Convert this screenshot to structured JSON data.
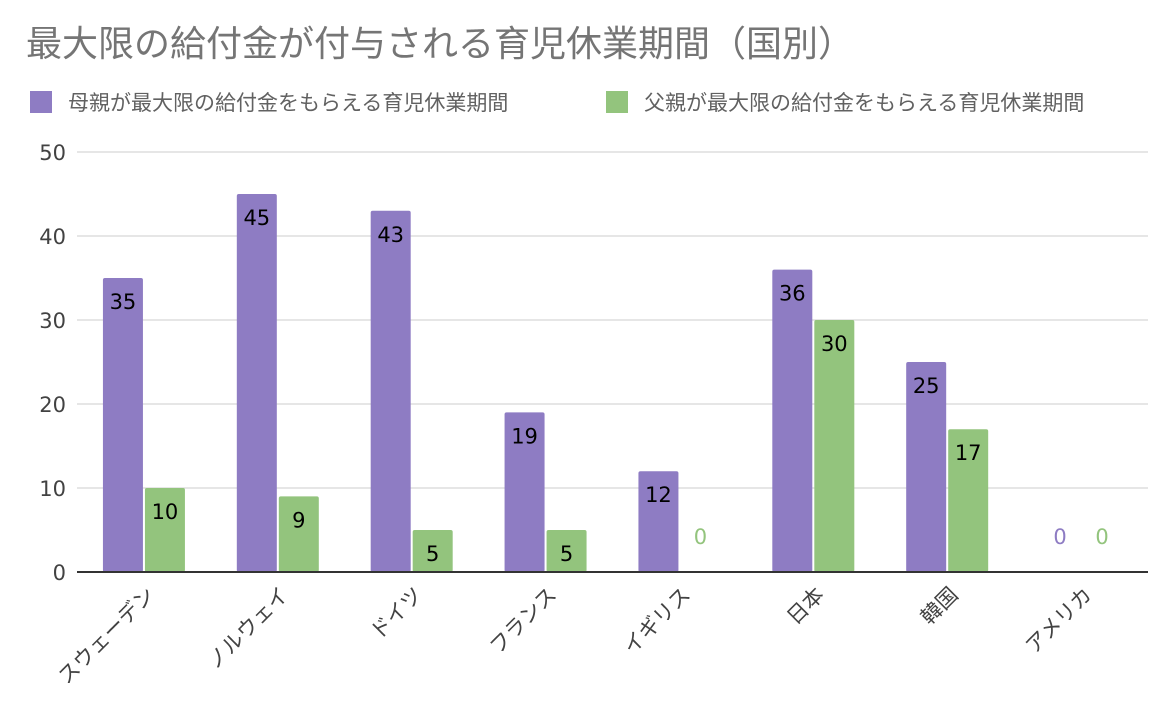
{
  "chart_data": {
    "type": "bar",
    "title": "最大限の給付金が付与される育児休業期間（国別）",
    "categories": [
      "スウェーデン",
      "ノルウェイ",
      "ドイツ",
      "フランス",
      "イギリス",
      "日本",
      "韓国",
      "アメリカ"
    ],
    "series": [
      {
        "name": "母親が最大限の給付金をもらえる育児休業期間",
        "values": [
          35,
          45,
          43,
          19,
          12,
          36,
          25,
          0
        ]
      },
      {
        "name": "父親が最大限の給付金をもらえる育児休業期間",
        "values": [
          10,
          9,
          5,
          5,
          0,
          30,
          17,
          0
        ]
      }
    ],
    "ylim": [
      0,
      50
    ],
    "yticks": [
      0,
      10,
      20,
      30,
      40,
      50
    ],
    "grid": true,
    "legend_position": "top-left",
    "colors": [
      "#8e7cc3",
      "#93c47d"
    ]
  }
}
